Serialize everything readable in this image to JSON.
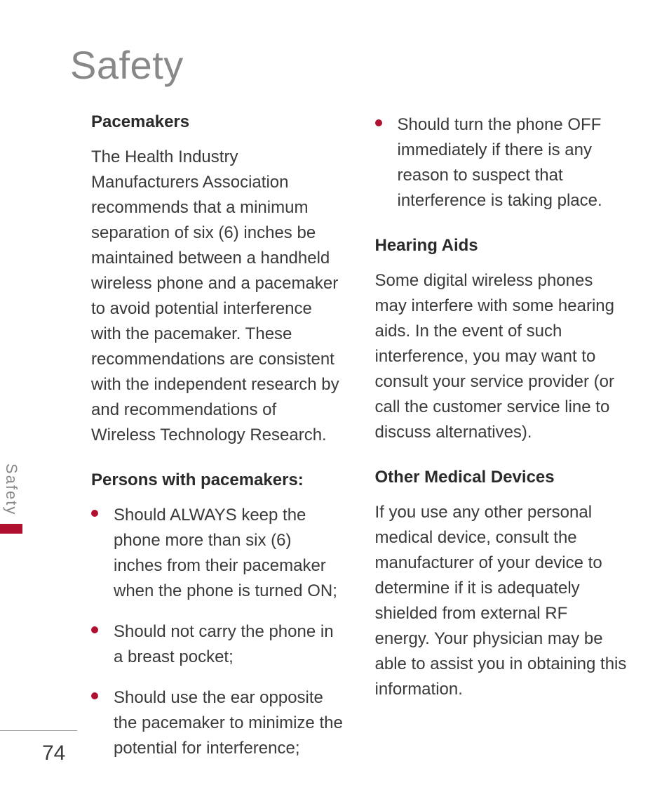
{
  "page": {
    "title": "Safety",
    "number": "74",
    "side_tab": "Safety"
  },
  "colors": {
    "accent": "#b01030",
    "title": "#888888",
    "text": "#3a3a3a",
    "heading": "#2a2a2a",
    "background": "#ffffff"
  },
  "typography": {
    "title_size": 56,
    "heading_size": 24,
    "body_size": 24,
    "page_number_size": 30
  },
  "left_column": {
    "heading1": "Pacemakers",
    "para1": "The Health Industry Manufacturers Association recommends that a minimum separation of six (6) inches be maintained between a handheld wireless phone and a pacemaker to avoid potential interference with the pacemaker. These recommendations are consistent with the independent research by and recommendations of Wireless Technology Research.",
    "heading2": "Persons with pacemakers:",
    "bullets": [
      "Should ALWAYS keep the phone more than six (6) inches from their pacemaker when the phone is turned ON;",
      "Should not carry the phone in a breast pocket;",
      "Should use the ear opposite the pacemaker to minimize the potential for interference;"
    ]
  },
  "right_column": {
    "bullets_cont": [
      "Should turn the phone OFF immediately if there is any reason to suspect that interference is taking place."
    ],
    "heading1": "Hearing Aids",
    "para1": "Some digital wireless phones may interfere with some hearing aids. In the event of such interference, you may want to consult your service provider (or call the customer service line to discuss alternatives).",
    "heading2": "Other Medical Devices",
    "para2": "If you use any other personal medical device, consult the manufacturer of your device to determine if it is adequately shielded from external RF energy. Your physician may be able to assist you in obtaining this information."
  }
}
